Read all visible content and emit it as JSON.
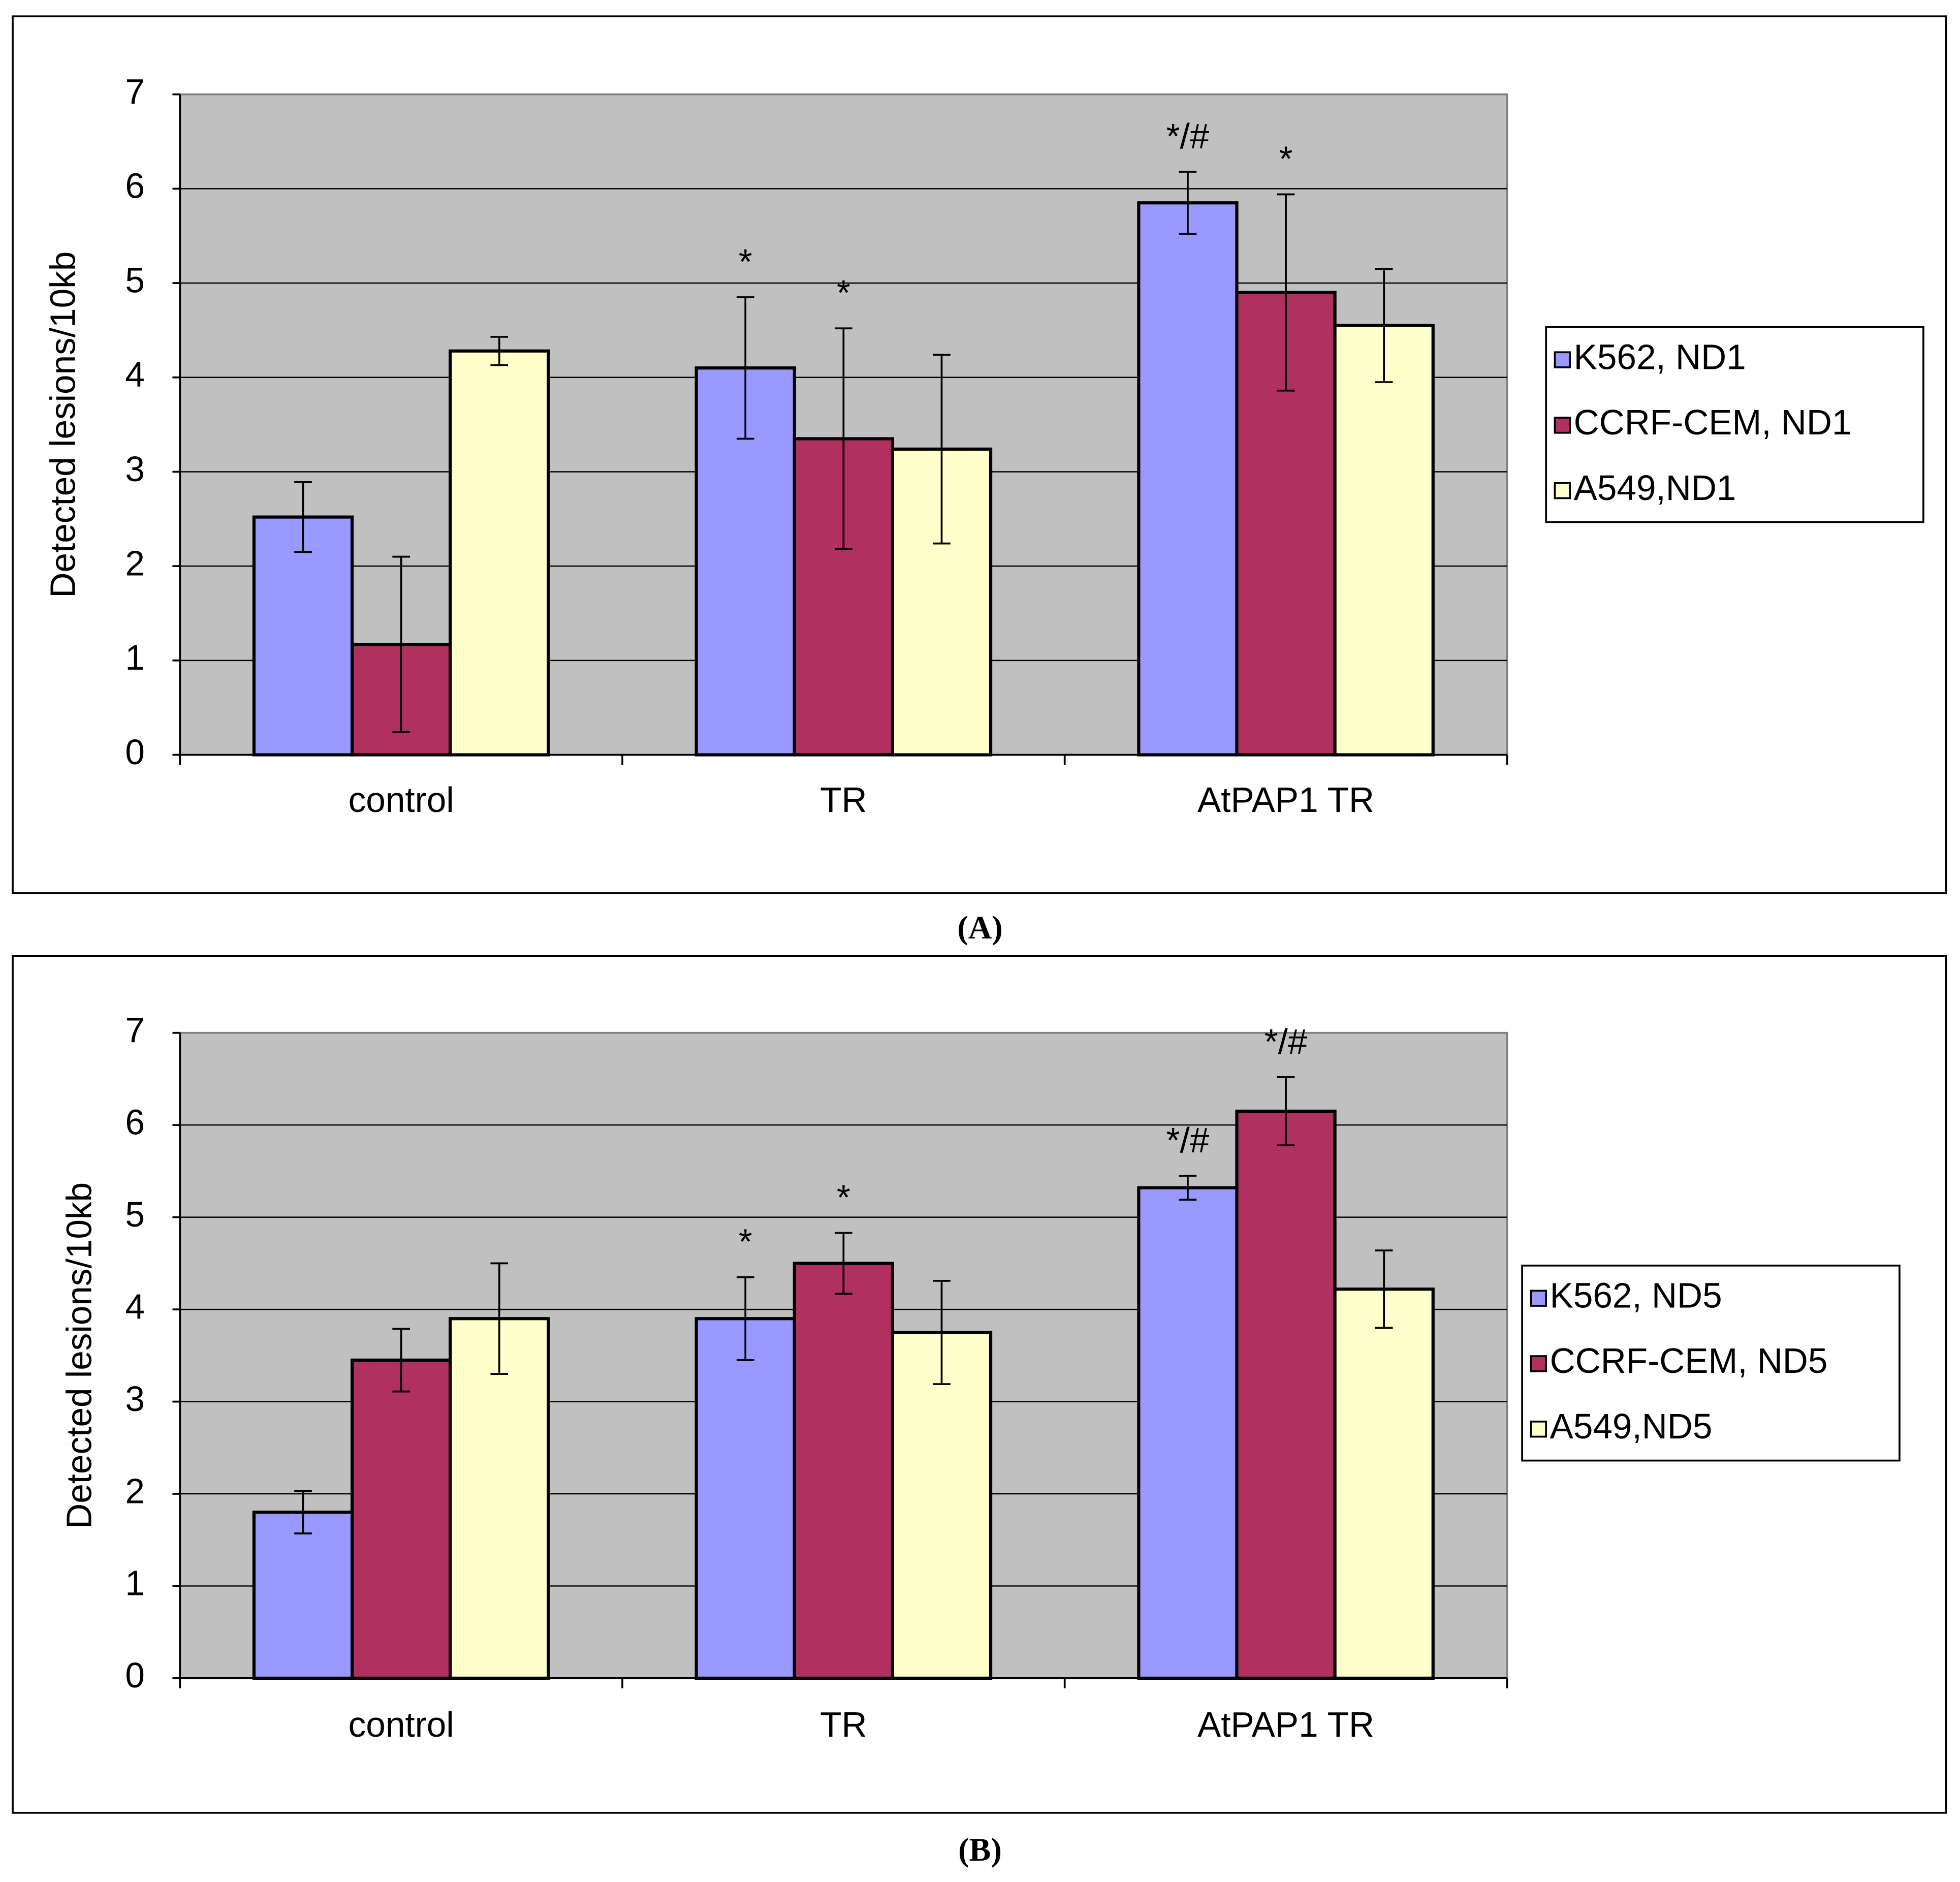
{
  "chart_data": [
    {
      "type": "bar",
      "caption": "(A)",
      "y_label": "Detected lesions/10kb",
      "categories": [
        "control",
        "TR",
        "AtPAP1 TR"
      ],
      "series": [
        {
          "name": "K562, ND1",
          "color": "#9999ff",
          "values": [
            2.52,
            4.1,
            5.85
          ],
          "errors": [
            0.37,
            0.75,
            0.33
          ],
          "annotations": [
            null,
            "*",
            "*/#"
          ]
        },
        {
          "name": "CCRF-CEM, ND1",
          "color": "#b03060",
          "values": [
            1.17,
            3.35,
            4.9
          ],
          "errors": [
            0.93,
            1.17,
            1.04
          ],
          "annotations": [
            null,
            "*",
            "*"
          ]
        },
        {
          "name": "A549,ND1",
          "color": "#ffffcc",
          "values": [
            4.28,
            3.24,
            4.55
          ],
          "errors": [
            0.15,
            1.0,
            0.6
          ],
          "annotations": [
            null,
            null,
            null
          ]
        }
      ],
      "ylim": [
        0,
        7
      ],
      "yticks": [
        0,
        1,
        2,
        3,
        4,
        5,
        6,
        7
      ],
      "grid": true,
      "legend": "right"
    },
    {
      "type": "bar",
      "caption": "(B)",
      "y_label": "Detected lesions/10kb",
      "categories": [
        "control",
        "TR",
        "AtPAP1 TR"
      ],
      "series": [
        {
          "name": "K562, ND5",
          "color": "#9999ff",
          "values": [
            1.8,
            3.9,
            5.32
          ],
          "errors": [
            0.23,
            0.45,
            0.13
          ],
          "annotations": [
            null,
            "*",
            "*/#"
          ]
        },
        {
          "name": "CCRF-CEM, ND5",
          "color": "#b03060",
          "values": [
            3.45,
            4.5,
            6.15
          ],
          "errors": [
            0.34,
            0.33,
            0.37
          ],
          "annotations": [
            null,
            "*",
            "*/#"
          ]
        },
        {
          "name": "A549,ND5",
          "color": "#ffffcc",
          "values": [
            3.9,
            3.75,
            4.22
          ],
          "errors": [
            0.6,
            0.56,
            0.42
          ],
          "annotations": [
            null,
            null,
            null
          ]
        }
      ],
      "ylim": [
        0,
        7
      ],
      "yticks": [
        0,
        1,
        2,
        3,
        4,
        5,
        6,
        7
      ],
      "grid": true,
      "legend": "right"
    }
  ]
}
